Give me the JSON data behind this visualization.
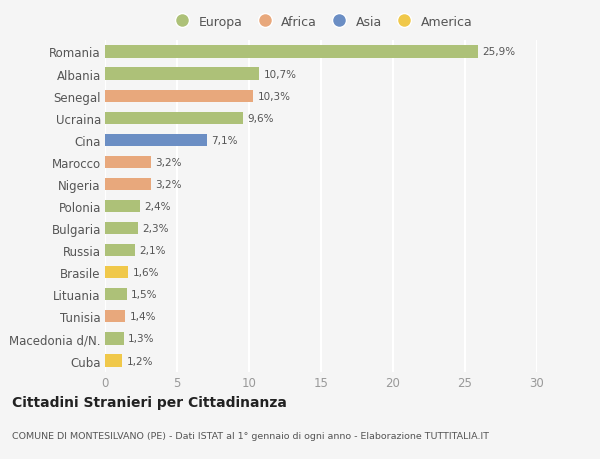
{
  "countries": [
    "Romania",
    "Albania",
    "Senegal",
    "Ucraina",
    "Cina",
    "Marocco",
    "Nigeria",
    "Polonia",
    "Bulgaria",
    "Russia",
    "Brasile",
    "Lituania",
    "Tunisia",
    "Macedonia d/N.",
    "Cuba"
  ],
  "values": [
    25.9,
    10.7,
    10.3,
    9.6,
    7.1,
    3.2,
    3.2,
    2.4,
    2.3,
    2.1,
    1.6,
    1.5,
    1.4,
    1.3,
    1.2
  ],
  "labels": [
    "25,9%",
    "10,7%",
    "10,3%",
    "9,6%",
    "7,1%",
    "3,2%",
    "3,2%",
    "2,4%",
    "2,3%",
    "2,1%",
    "1,6%",
    "1,5%",
    "1,4%",
    "1,3%",
    "1,2%"
  ],
  "continents": [
    "Europa",
    "Europa",
    "Africa",
    "Europa",
    "Asia",
    "Africa",
    "Africa",
    "Europa",
    "Europa",
    "Europa",
    "America",
    "Europa",
    "Africa",
    "Europa",
    "America"
  ],
  "continent_colors": {
    "Europa": "#adc178",
    "Africa": "#e8a87c",
    "Asia": "#6b8ec4",
    "America": "#f0c84a"
  },
  "legend_order": [
    "Europa",
    "Africa",
    "Asia",
    "America"
  ],
  "title": "Cittadini Stranieri per Cittadinanza",
  "subtitle": "COMUNE DI MONTESILVANO (PE) - Dati ISTAT al 1° gennaio di ogni anno - Elaborazione TUTTITALIA.IT",
  "xlim": [
    0,
    30
  ],
  "xticks": [
    0,
    5,
    10,
    15,
    20,
    25,
    30
  ],
  "background_color": "#f5f5f5",
  "grid_color": "#ffffff",
  "bar_height": 0.55
}
